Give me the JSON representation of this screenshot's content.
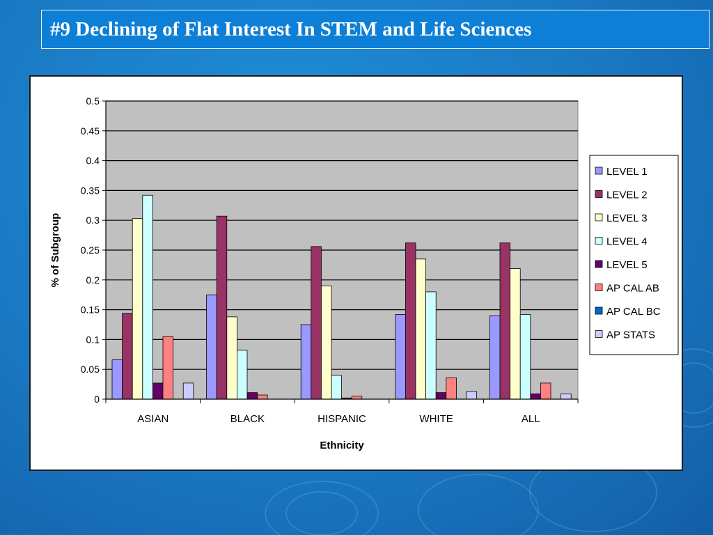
{
  "slide": {
    "title": "#9  Declining of Flat Interest In STEM and Life Sciences"
  },
  "colors": {
    "background": "#1a78c2",
    "title_box": "#0d7fd6",
    "plot_area": "#c0c0c0"
  },
  "chart_data": {
    "type": "bar",
    "title": "",
    "xlabel": "Ethnicity",
    "ylabel": "% of Subgroup",
    "ylim": [
      0,
      0.5
    ],
    "yticks": [
      "0",
      "0.05",
      "0.1",
      "0.15",
      "0.2",
      "0.25",
      "0.3",
      "0.35",
      "0.4",
      "0.45",
      "0.5"
    ],
    "grid": true,
    "legend_position": "right",
    "categories": [
      "ASIAN",
      "BLACK",
      "HISPANIC",
      "WHITE",
      "ALL"
    ],
    "series": [
      {
        "name": "LEVEL 1",
        "color": "#9999ff",
        "values": [
          0.066,
          0.175,
          0.125,
          0.142,
          0.14
        ]
      },
      {
        "name": "LEVEL 2",
        "color": "#993366",
        "values": [
          0.144,
          0.307,
          0.256,
          0.262,
          0.262
        ]
      },
      {
        "name": "LEVEL 3",
        "color": "#ffffcc",
        "values": [
          0.303,
          0.138,
          0.19,
          0.235,
          0.219
        ]
      },
      {
        "name": "LEVEL 4",
        "color": "#ccffff",
        "values": [
          0.342,
          0.082,
          0.04,
          0.18,
          0.142
        ]
      },
      {
        "name": "LEVEL 5",
        "color": "#660066",
        "values": [
          0.027,
          0.011,
          0.002,
          0.011,
          0.009
        ]
      },
      {
        "name": "AP CAL AB",
        "color": "#ff8080",
        "values": [
          0.105,
          0.007,
          0.005,
          0.036,
          0.027
        ]
      },
      {
        "name": "AP CAL BC",
        "color": "#0066cc",
        "values": [
          0.0,
          0.0,
          0.0,
          0.0,
          0.0
        ]
      },
      {
        "name": "AP STATS",
        "color": "#ccccff",
        "values": [
          0.027,
          0.0,
          0.0,
          0.013,
          0.009
        ]
      }
    ]
  }
}
